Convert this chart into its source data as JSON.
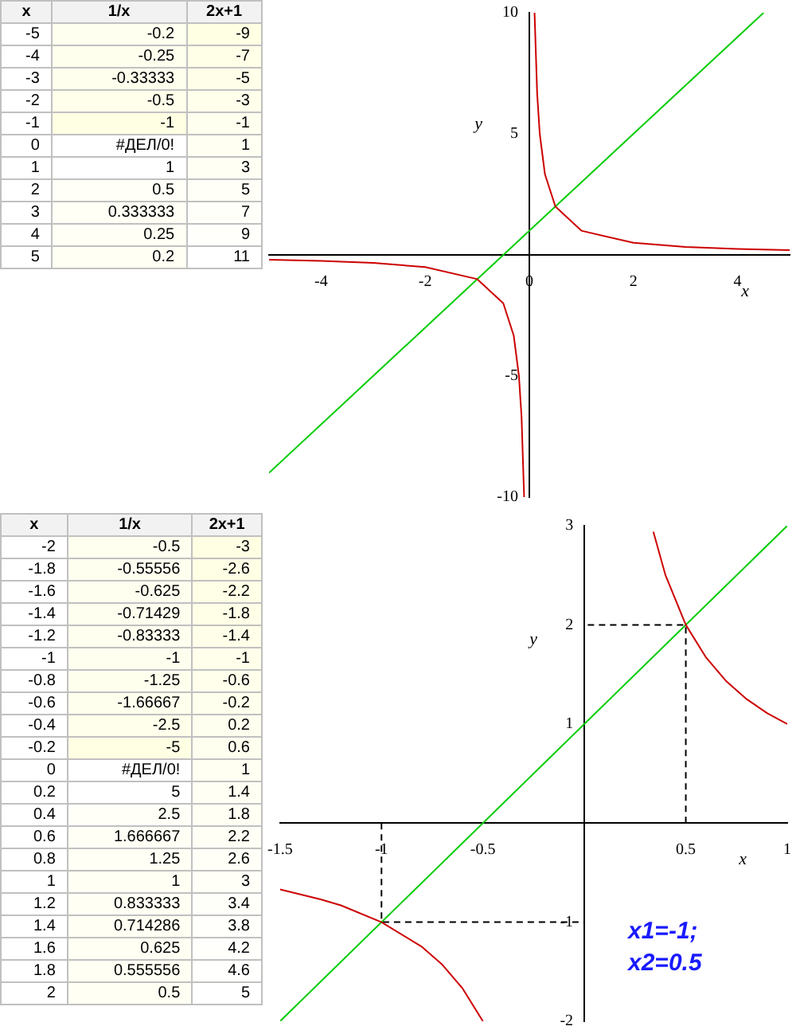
{
  "chart_data": [
    {
      "type": "heatmap",
      "ylabel": "x",
      "categories": [
        "1/x",
        "2x+1"
      ],
      "y_categories": [
        "-5",
        "-4",
        "-3",
        "-2",
        "-1",
        "0",
        "1",
        "2",
        "3",
        "4",
        "5"
      ],
      "cells": [
        [
          -0.2,
          -9
        ],
        [
          -0.25,
          -7
        ],
        [
          -0.33333,
          -5
        ],
        [
          -0.5,
          -3
        ],
        [
          -1,
          -1
        ],
        [
          null,
          1
        ],
        [
          1,
          3
        ],
        [
          0.5,
          5
        ],
        [
          0.333333,
          7
        ],
        [
          0.25,
          9
        ],
        [
          0.2,
          11
        ]
      ],
      "cell_labels": [
        [
          "-0.2",
          "-9"
        ],
        [
          "-0.25",
          "-7"
        ],
        [
          "-0.33333",
          "-5"
        ],
        [
          "-0.5",
          "-3"
        ],
        [
          "-1",
          "-1"
        ],
        [
          "#ДЕЛ/0!",
          "1"
        ],
        [
          "1",
          "3"
        ],
        [
          "0.5",
          "5"
        ],
        [
          "0.333333",
          "7"
        ],
        [
          "0.25",
          "9"
        ],
        [
          "0.2",
          "11"
        ]
      ]
    },
    {
      "type": "line",
      "xlabel": "x",
      "ylabel": "y",
      "xlim": [
        -5,
        5
      ],
      "ylim": [
        -10,
        10
      ],
      "xticks": [
        -4,
        -2,
        0,
        2,
        4
      ],
      "yticks": [
        -10,
        -5,
        5,
        10
      ],
      "marker": "none",
      "grid": false,
      "legend": false,
      "series": [
        {
          "color": "#cc0000",
          "x": [
            -5,
            -4,
            -3,
            -2,
            -1,
            -0.5,
            -0.3,
            -0.2,
            -0.15,
            -0.1,
            0,
            0.1,
            0.15,
            0.2,
            0.3,
            0.5,
            1,
            2,
            3,
            4,
            5
          ],
          "values": [
            -0.2,
            -0.25,
            -0.33,
            -0.5,
            -1,
            -2,
            -3.33,
            -5,
            -6.67,
            -10,
            null,
            10,
            6.67,
            5,
            3.33,
            2,
            1,
            0.5,
            0.33,
            0.25,
            0.2
          ]
        },
        {
          "color": "#00cc00",
          "x": [
            -5,
            4.5
          ],
          "values": [
            -9,
            10
          ]
        }
      ]
    },
    {
      "type": "heatmap",
      "ylabel": "x",
      "categories": [
        "1/x",
        "2x+1"
      ],
      "y_categories": [
        "-2",
        "-1.8",
        "-1.6",
        "-1.4",
        "-1.2",
        "-1",
        "-0.8",
        "-0.6",
        "-0.4",
        "-0.2",
        "0",
        "0.2",
        "0.4",
        "0.6",
        "0.8",
        "1",
        "1.2",
        "1.4",
        "1.6",
        "1.8",
        "2"
      ],
      "cells": [
        [
          -0.5,
          -3
        ],
        [
          -0.55556,
          -2.6
        ],
        [
          -0.625,
          -2.2
        ],
        [
          -0.71429,
          -1.8
        ],
        [
          -0.83333,
          -1.4
        ],
        [
          -1,
          -1
        ],
        [
          -1.25,
          -0.6
        ],
        [
          -1.66667,
          -0.2
        ],
        [
          -2.5,
          0.2
        ],
        [
          -5,
          0.6
        ],
        [
          null,
          1
        ],
        [
          5,
          1.4
        ],
        [
          2.5,
          1.8
        ],
        [
          1.666667,
          2.2
        ],
        [
          1.25,
          2.6
        ],
        [
          1,
          3
        ],
        [
          0.833333,
          3.4
        ],
        [
          0.714286,
          3.8
        ],
        [
          0.625,
          4.2
        ],
        [
          0.555556,
          4.6
        ],
        [
          0.5,
          5
        ]
      ],
      "cell_labels": [
        [
          "-0.5",
          "-3"
        ],
        [
          "-0.55556",
          "-2.6"
        ],
        [
          "-0.625",
          "-2.2"
        ],
        [
          "-0.71429",
          "-1.8"
        ],
        [
          "-0.83333",
          "-1.4"
        ],
        [
          "-1",
          "-1"
        ],
        [
          "-1.25",
          "-0.6"
        ],
        [
          "-1.66667",
          "-0.2"
        ],
        [
          "-2.5",
          "0.2"
        ],
        [
          "-5",
          "0.6"
        ],
        [
          "#ДЕЛ/0!",
          "1"
        ],
        [
          "5",
          "1.4"
        ],
        [
          "2.5",
          "1.8"
        ],
        [
          "1.666667",
          "2.2"
        ],
        [
          "1.25",
          "2.6"
        ],
        [
          "1",
          "3"
        ],
        [
          "0.833333",
          "3.4"
        ],
        [
          "0.714286",
          "3.8"
        ],
        [
          "0.625",
          "4.2"
        ],
        [
          "0.555556",
          "4.6"
        ],
        [
          "0.5",
          "5"
        ]
      ]
    },
    {
      "type": "line",
      "xlabel": "x",
      "ylabel": "y",
      "xlim": [
        -1.5,
        1
      ],
      "ylim": [
        -2,
        3
      ],
      "xticks": [
        -1.5,
        -1,
        -0.5,
        0.5,
        1
      ],
      "yticks": [
        -2,
        -1,
        1,
        2,
        3
      ],
      "marker": "none",
      "grid": false,
      "legend": false,
      "annotations": [
        "x1=-1;",
        "x2=0.5"
      ],
      "series": [
        {
          "color": "#cc0000",
          "x": [
            -1.5,
            -1.3,
            -1.2,
            -1,
            -0.8,
            -0.7,
            -0.6,
            -0.5,
            0,
            0.34,
            0.4,
            0.5,
            0.6,
            0.7,
            0.8,
            0.9,
            1
          ],
          "values": [
            -0.67,
            -0.77,
            -0.83,
            -1,
            -1.25,
            -1.43,
            -1.67,
            -2,
            null,
            2.94,
            2.5,
            2,
            1.67,
            1.43,
            1.25,
            1.11,
            1
          ]
        },
        {
          "color": "#00cc00",
          "x": [
            -1.5,
            1
          ],
          "values": [
            -2,
            3
          ]
        },
        {
          "color": "#000000",
          "line_style": "dashed",
          "x": [
            -1,
            -1,
            0
          ],
          "values": [
            0,
            -1,
            -1
          ]
        },
        {
          "color": "#000000",
          "line_style": "dashed",
          "x": [
            0.5,
            0.5,
            0
          ],
          "values": [
            0,
            2,
            2
          ]
        }
      ]
    }
  ]
}
